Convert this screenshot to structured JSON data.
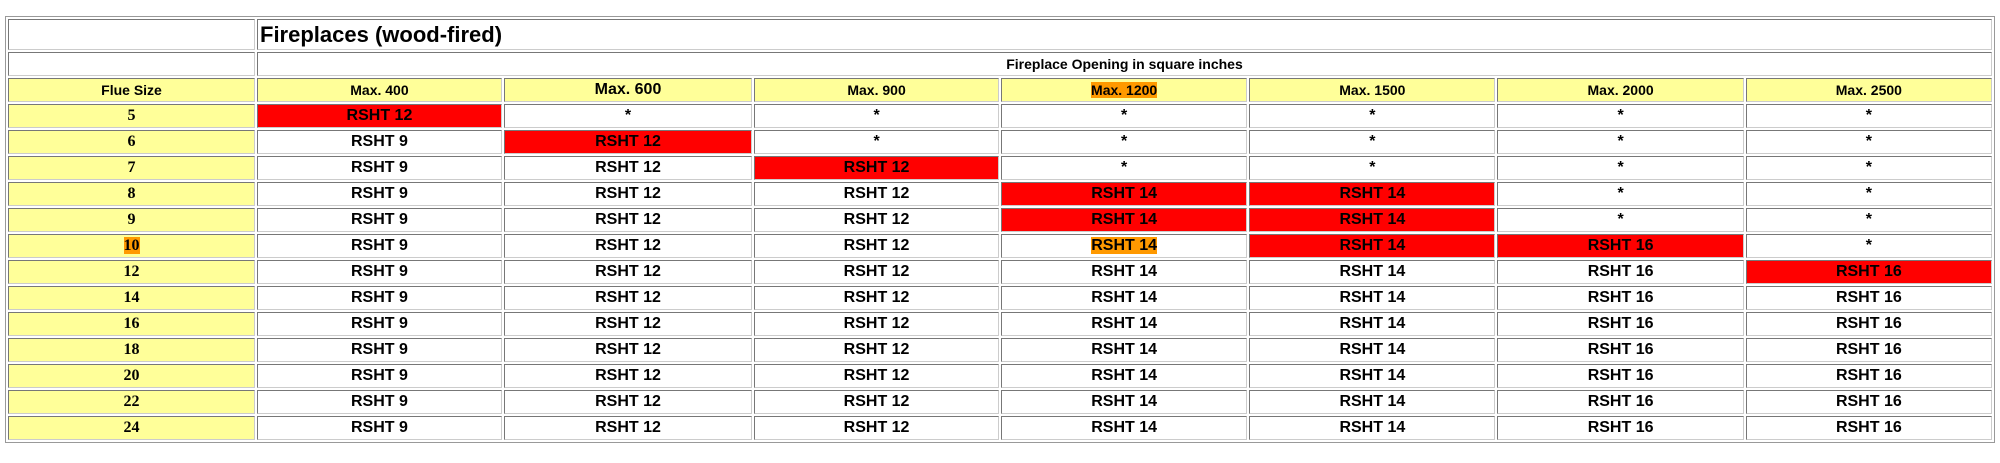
{
  "title": "Fireplaces (wood-fired)",
  "subtitle": "Fireplace Opening in square inches",
  "colors": {
    "header_bg": "#ffff99",
    "red": "#ff0000",
    "orange": "#ff9900"
  },
  "headers": [
    "Flue Size",
    "Max. 400",
    "Max. 600",
    "Max. 900",
    "Max. 1200",
    "Max. 1500",
    "Max. 2000",
    "Max. 2500"
  ],
  "highlighted_header": "Max. 1200",
  "rows": [
    {
      "flue": "5",
      "cells": [
        "RSHT 12",
        "*",
        "*",
        "*",
        "*",
        "*",
        "*"
      ],
      "red": [
        0
      ]
    },
    {
      "flue": "6",
      "cells": [
        "RSHT 9",
        "RSHT 12",
        "*",
        "*",
        "*",
        "*",
        "*"
      ],
      "red": [
        1
      ]
    },
    {
      "flue": "7",
      "cells": [
        "RSHT 9",
        "RSHT 12",
        "RSHT 12",
        "*",
        "*",
        "*",
        "*"
      ],
      "red": [
        2
      ]
    },
    {
      "flue": "8",
      "cells": [
        "RSHT 9",
        "RSHT 12",
        "RSHT 12",
        "RSHT 14",
        "RSHT 14",
        "*",
        "*"
      ],
      "red": [
        3,
        4
      ]
    },
    {
      "flue": "9",
      "cells": [
        "RSHT 9",
        "RSHT 12",
        "RSHT 12",
        "RSHT 14",
        "RSHT 14",
        "*",
        "*"
      ],
      "red": [
        3,
        4
      ]
    },
    {
      "flue": "10",
      "cells": [
        "RSHT 9",
        "RSHT 12",
        "RSHT 12",
        "RSHT 14",
        "RSHT 14",
        "RSHT 16",
        "*"
      ],
      "red": [
        4,
        5
      ],
      "highlight_flue": true,
      "highlight_cell": 3
    },
    {
      "flue": "12",
      "cells": [
        "RSHT 9",
        "RSHT 12",
        "RSHT 12",
        "RSHT 14",
        "RSHT 14",
        "RSHT 16",
        "RSHT 16"
      ],
      "red": [
        6
      ]
    },
    {
      "flue": "14",
      "cells": [
        "RSHT 9",
        "RSHT 12",
        "RSHT 12",
        "RSHT 14",
        "RSHT 14",
        "RSHT 16",
        "RSHT 16"
      ],
      "red": []
    },
    {
      "flue": "16",
      "cells": [
        "RSHT 9",
        "RSHT 12",
        "RSHT 12",
        "RSHT 14",
        "RSHT 14",
        "RSHT 16",
        "RSHT 16"
      ],
      "red": []
    },
    {
      "flue": "18",
      "cells": [
        "RSHT 9",
        "RSHT 12",
        "RSHT 12",
        "RSHT 14",
        "RSHT 14",
        "RSHT 16",
        "RSHT 16"
      ],
      "red": []
    },
    {
      "flue": "20",
      "cells": [
        "RSHT 9",
        "RSHT 12",
        "RSHT 12",
        "RSHT 14",
        "RSHT 14",
        "RSHT 16",
        "RSHT 16"
      ],
      "red": []
    },
    {
      "flue": "22",
      "cells": [
        "RSHT 9",
        "RSHT 12",
        "RSHT 12",
        "RSHT 14",
        "RSHT 14",
        "RSHT 16",
        "RSHT 16"
      ],
      "red": []
    },
    {
      "flue": "24",
      "cells": [
        "RSHT 9",
        "RSHT 12",
        "RSHT 12",
        "RSHT 14",
        "RSHT 14",
        "RSHT 16",
        "RSHT 16"
      ],
      "red": []
    }
  ]
}
